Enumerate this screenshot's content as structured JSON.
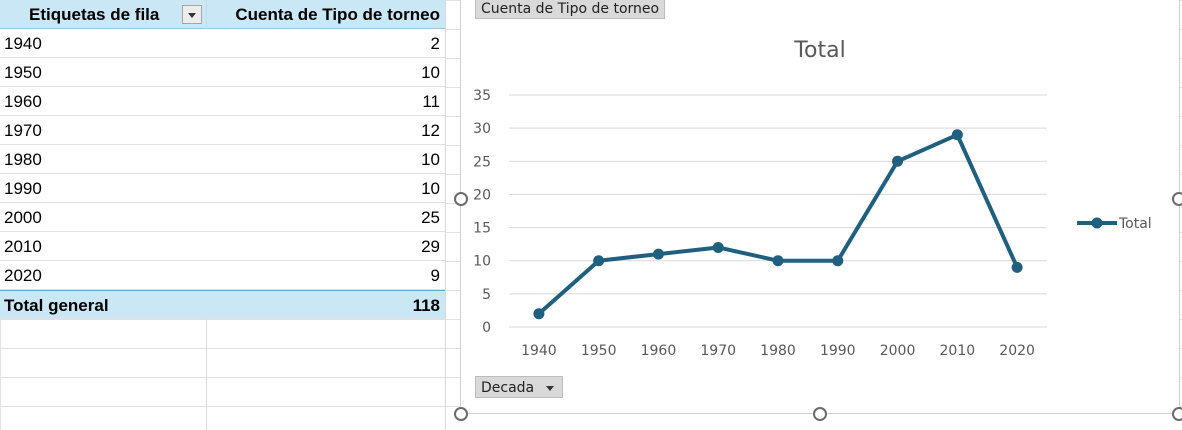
{
  "pivot": {
    "header": {
      "row_labels": "Etiquetas de fila",
      "value_column": "Cuenta de Tipo de torneo"
    },
    "rows": [
      {
        "label": "1940",
        "value": "2"
      },
      {
        "label": "1950",
        "value": "10"
      },
      {
        "label": "1960",
        "value": "11"
      },
      {
        "label": "1970",
        "value": "12"
      },
      {
        "label": "1980",
        "value": "10"
      },
      {
        "label": "1990",
        "value": "10"
      },
      {
        "label": "2000",
        "value": "25"
      },
      {
        "label": "2010",
        "value": "29"
      },
      {
        "label": "2020",
        "value": "9"
      }
    ],
    "total": {
      "label": "Total general",
      "value": "118"
    }
  },
  "chart_buttons": {
    "values_field": "Cuenta de Tipo de torneo",
    "axis_field": "Decada"
  },
  "chart_data": {
    "type": "line",
    "title": "Total",
    "categories": [
      "1940",
      "1950",
      "1960",
      "1970",
      "1980",
      "1990",
      "2000",
      "2010",
      "2020"
    ],
    "series": [
      {
        "name": "Total",
        "values": [
          2,
          10,
          11,
          12,
          10,
          10,
          25,
          29,
          9
        ],
        "color": "#1f5f7f"
      }
    ],
    "ylim": [
      0,
      35
    ],
    "yticks": [
      0,
      5,
      10,
      15,
      20,
      25,
      30,
      35
    ],
    "grid": true,
    "legend_position": "right"
  }
}
